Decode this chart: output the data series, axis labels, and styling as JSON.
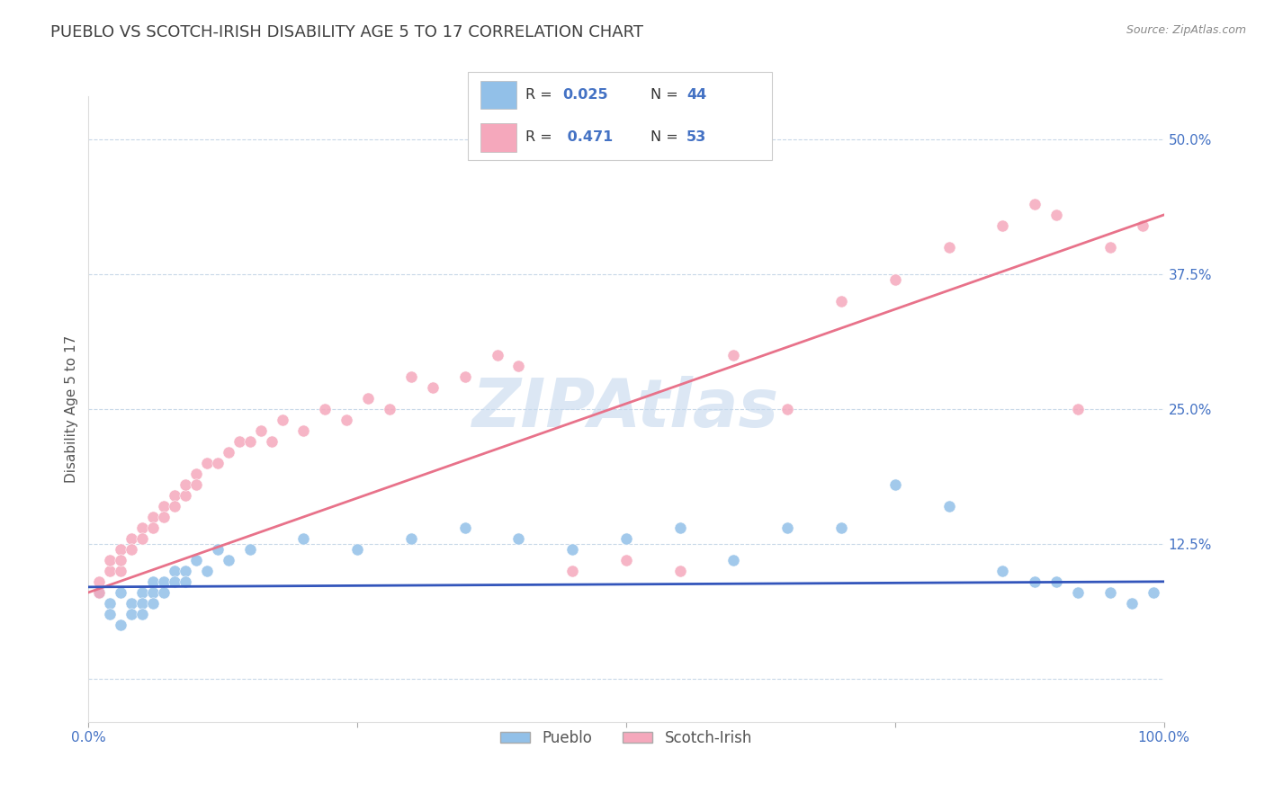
{
  "title": "PUEBLO VS SCOTCH-IRISH DISABILITY AGE 5 TO 17 CORRELATION CHART",
  "source": "Source: ZipAtlas.com",
  "ylabel": "Disability Age 5 to 17",
  "xlim": [
    0,
    100
  ],
  "ylim": [
    -4,
    54
  ],
  "ytick_vals": [
    0,
    12.5,
    25.0,
    37.5,
    50.0
  ],
  "ytick_labels": [
    "",
    "12.5%",
    "25.0%",
    "37.5%",
    "50.0%"
  ],
  "xtick_vals": [
    0,
    25,
    50,
    75,
    100
  ],
  "xtick_labels": [
    "0.0%",
    "",
    "",
    "",
    "100.0%"
  ],
  "pueblo_color": "#92C0E8",
  "scotch_color": "#F5A8BC",
  "pueblo_line_color": "#3355BB",
  "scotch_line_color": "#E8728A",
  "pueblo_R": 0.025,
  "pueblo_N": 44,
  "scotch_R": 0.471,
  "scotch_N": 53,
  "legend_color": "#4472C4",
  "watermark": "ZIPAtlas",
  "watermark_color": "#C5D8EE",
  "background_color": "#ffffff",
  "grid_color": "#C8D8E8",
  "title_color": "#404040",
  "axis_tick_color": "#4472C4",
  "ylabel_color": "#555555",
  "scotch_line_start": 8.0,
  "scotch_line_end": 43.0,
  "pueblo_line_start": 8.5,
  "pueblo_line_end": 9.0,
  "pueblo_x": [
    1,
    2,
    2,
    3,
    3,
    4,
    4,
    5,
    5,
    5,
    6,
    6,
    6,
    7,
    7,
    8,
    8,
    9,
    9,
    10,
    11,
    12,
    13,
    15,
    20,
    25,
    30,
    35,
    40,
    45,
    50,
    55,
    60,
    65,
    70,
    75,
    80,
    85,
    88,
    90,
    92,
    95,
    97,
    99
  ],
  "pueblo_y": [
    8,
    7,
    6,
    8,
    5,
    7,
    6,
    8,
    7,
    6,
    9,
    8,
    7,
    9,
    8,
    10,
    9,
    10,
    9,
    11,
    10,
    12,
    11,
    12,
    13,
    12,
    13,
    14,
    13,
    12,
    13,
    14,
    11,
    14,
    14,
    18,
    16,
    10,
    9,
    9,
    8,
    8,
    7,
    8
  ],
  "scotch_x": [
    1,
    1,
    2,
    2,
    3,
    3,
    3,
    4,
    4,
    5,
    5,
    6,
    6,
    7,
    7,
    8,
    8,
    9,
    9,
    10,
    10,
    11,
    12,
    13,
    14,
    15,
    16,
    17,
    18,
    20,
    22,
    24,
    26,
    28,
    30,
    32,
    35,
    38,
    40,
    45,
    50,
    55,
    60,
    65,
    70,
    75,
    80,
    85,
    88,
    90,
    92,
    95,
    98
  ],
  "scotch_y": [
    8,
    9,
    10,
    11,
    10,
    12,
    11,
    13,
    12,
    14,
    13,
    15,
    14,
    16,
    15,
    17,
    16,
    17,
    18,
    19,
    18,
    20,
    20,
    21,
    22,
    22,
    23,
    22,
    24,
    23,
    25,
    24,
    26,
    25,
    28,
    27,
    28,
    30,
    29,
    10,
    11,
    10,
    30,
    25,
    35,
    37,
    40,
    42,
    44,
    43,
    25,
    40,
    42
  ]
}
